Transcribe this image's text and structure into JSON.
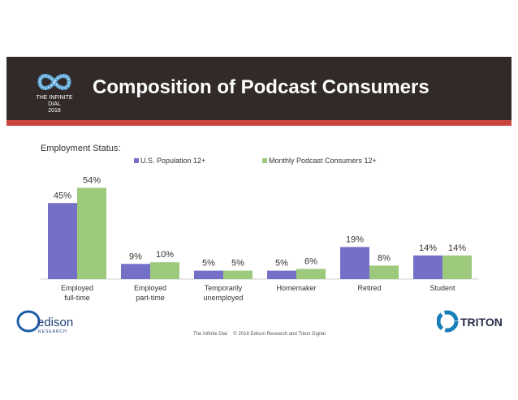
{
  "header": {
    "title": "Composition of Podcast Consumers",
    "logo_line1": "THE INFINITE DIAL",
    "logo_line2": "2018"
  },
  "footer": {
    "left": "The Infinite Dial",
    "right": "© 2018 Edison Research and Triton Digital"
  },
  "brands": {
    "edison": "edison",
    "edison_sub": "RESEARCH",
    "triton": "TRITON"
  },
  "colors": {
    "series1": "#7470c7",
    "series2": "#9dc97d",
    "accent": "#c8453f",
    "banner": "#312a28"
  },
  "chart_data": {
    "type": "bar",
    "title": "Employment Status:",
    "categories": [
      [
        "Employed",
        "full-time"
      ],
      [
        "Employed",
        "part-time"
      ],
      [
        "Temporarily",
        "unemployed"
      ],
      [
        "Homemaker"
      ],
      [
        "Retired"
      ],
      [
        "Student"
      ]
    ],
    "series": [
      {
        "name": "U.S. Population 12+",
        "values": [
          45,
          9,
          5,
          5,
          19,
          14
        ]
      },
      {
        "name": "Monthly Podcast Consumers 12+",
        "values": [
          54,
          10,
          5,
          6,
          8,
          14
        ]
      }
    ],
    "value_suffix": "%",
    "ylim": [
      0,
      60
    ],
    "legend": "top"
  }
}
